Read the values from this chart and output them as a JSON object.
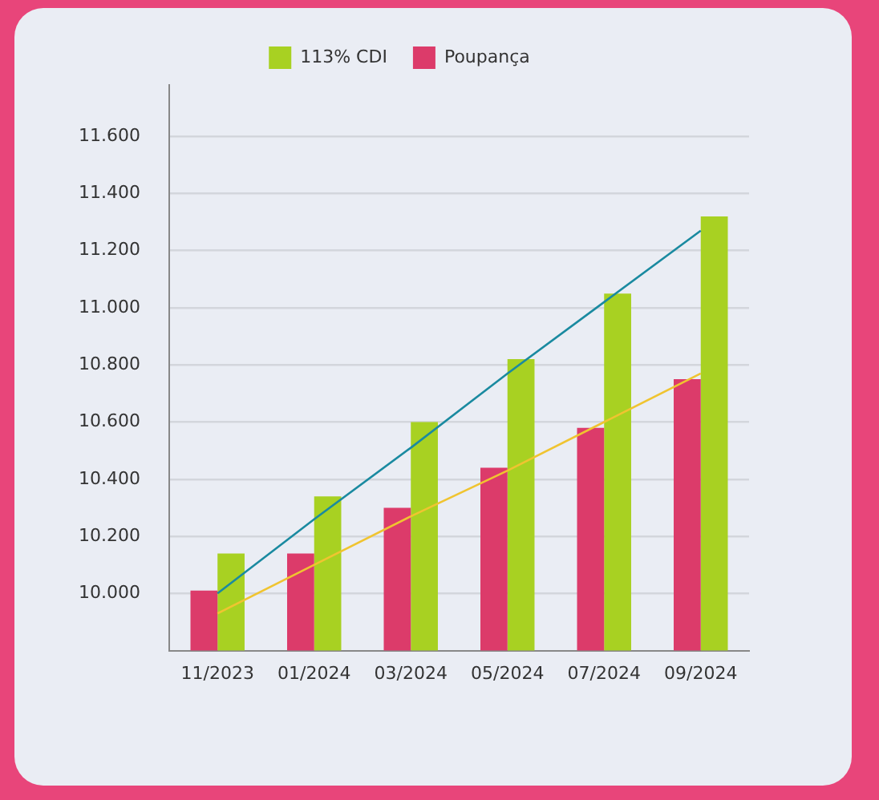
{
  "chart_data": {
    "type": "bar",
    "categories": [
      "11/2023",
      "01/2024",
      "03/2024",
      "05/2024",
      "07/2024",
      "09/2024"
    ],
    "series": [
      {
        "name": "Poupança",
        "color": "#dc3b6a",
        "values": [
          10010,
          10140,
          10300,
          10440,
          10580,
          10750
        ]
      },
      {
        "name": "113% CDI",
        "color": "#a8d122",
        "values": [
          10140,
          10340,
          10600,
          10820,
          11050,
          11320
        ]
      },
      {
        "type": "line",
        "color": "#1a8aa0",
        "values": [
          10000,
          10260,
          10510,
          10770,
          11020,
          11270
        ]
      },
      {
        "type": "line",
        "color": "#f0c430",
        "values": [
          9930,
          10100,
          10270,
          10430,
          10600,
          10770
        ]
      }
    ],
    "ylim": [
      9800,
      11780
    ],
    "yticks": [
      {
        "value": 10000,
        "label": "10.000"
      },
      {
        "value": 10200,
        "label": "10.200"
      },
      {
        "value": 10400,
        "label": "10.400"
      },
      {
        "value": 10600,
        "label": "10.600"
      },
      {
        "value": 10800,
        "label": "10.800"
      },
      {
        "value": 11000,
        "label": "11.000"
      },
      {
        "value": 11200,
        "label": "11.200"
      },
      {
        "value": 11400,
        "label": "11.400"
      },
      {
        "value": 11600,
        "label": "11.600"
      }
    ],
    "grid": "y",
    "legend": "top",
    "marker": "none"
  }
}
